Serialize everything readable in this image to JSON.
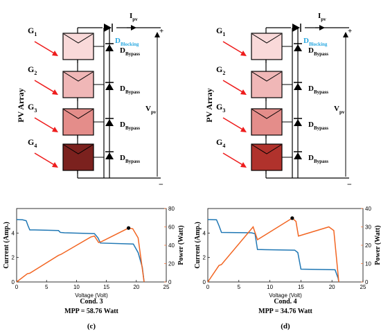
{
  "colors": {
    "arrow": "#ee1c1c",
    "current": "#1f77b4",
    "power": "#f26522",
    "blocking": "#29a8e0",
    "circuit_c": [
      "#f9d9d9",
      "#f0b7b7",
      "#e48d8a",
      "#7b211e"
    ],
    "circuit_d": [
      "#f9d9d9",
      "#f0b7b7",
      "#e48d8a",
      "#b0322c"
    ]
  },
  "diagram": {
    "irradiance": [
      "G",
      "G",
      "G",
      "G"
    ],
    "irradiance_sub": [
      "1",
      "2",
      "3",
      "4"
    ],
    "array_label": "PV Array",
    "current_main": "I",
    "current_sub": "pv",
    "voltage_main": "V",
    "voltage_sub": "pv",
    "plus": "+",
    "minus": "−",
    "blocking_main": "D",
    "blocking_sub": "Blocking",
    "bypass_main": "D",
    "bypass_sub": "Bypass"
  },
  "chart_data": [
    {
      "type": "line",
      "xlabel": "Voltage (Volt)",
      "ylabel_left": "Current (Amp.)",
      "ylabel_right": "Power (Watt)",
      "xlim": [
        0,
        25
      ],
      "ylim_left": [
        0,
        6
      ],
      "ylim_right": [
        0,
        80
      ],
      "xticks": [
        0,
        5,
        10,
        15,
        20,
        25
      ],
      "yticks_left": [
        0,
        2,
        4
      ],
      "yticks_right": [
        0,
        20,
        40,
        60,
        80
      ],
      "series": [
        {
          "axis": "left",
          "x": [
            0,
            1.0,
            1.6,
            1.9,
            2.2,
            3,
            7,
            7.3,
            8,
            13,
            13.6,
            14,
            19.5,
            20.3,
            21,
            21.3
          ],
          "y": [
            5.1,
            5.08,
            5.0,
            4.6,
            4.25,
            4.25,
            4.2,
            4.05,
            4.02,
            3.95,
            3.6,
            3.18,
            3.1,
            2.4,
            1.2,
            0
          ]
        },
        {
          "axis": "left-power",
          "x": [
            0,
            1.8,
            2.2,
            7.0,
            7.4,
            12.4,
            13.0,
            13.7,
            14.2,
            18.7,
            19.4,
            20.3,
            21.3
          ],
          "y": [
            0,
            9,
            9.5,
            29,
            30,
            49,
            50,
            43,
            44,
            58.76,
            58,
            48,
            0
          ]
        }
      ],
      "mpp_point": {
        "x": 18.7,
        "y": 58.76
      },
      "condition": "Cond. 3",
      "mpp": "MPP = 58.76 Watt",
      "panel": "(c)"
    },
    {
      "type": "line",
      "xlabel": "Voltage (Volt)",
      "ylabel_left": "Current (Amp.)",
      "ylabel_right": "Power (Watt)",
      "xlim": [
        0,
        25
      ],
      "ylim_left": [
        0,
        6
      ],
      "ylim_right": [
        0,
        40
      ],
      "xticks": [
        0,
        5,
        10,
        15,
        20,
        25
      ],
      "yticks_left": [
        0,
        2,
        4
      ],
      "yticks_right": [
        0,
        10,
        20,
        30,
        40
      ],
      "series": [
        {
          "axis": "left",
          "x": [
            0,
            1.4,
            1.8,
            2.2,
            7.0,
            7.6,
            8.0,
            14,
            14.5,
            15.0,
            20.5,
            21,
            21.1
          ],
          "y": [
            5.1,
            5.08,
            4.6,
            4.05,
            4.02,
            3.95,
            2.65,
            2.6,
            2.4,
            1.05,
            1.0,
            0.3,
            0
          ]
        },
        {
          "axis": "left-power",
          "x": [
            0,
            1.8,
            2.2,
            7.3,
            8.0,
            13.6,
            14.2,
            14.6,
            19.5,
            20.3,
            21.1
          ],
          "y": [
            0,
            9,
            9.5,
            30,
            23,
            34.76,
            33,
            25,
            30,
            28,
            0
          ]
        }
      ],
      "mpp_point": {
        "x": 13.6,
        "y": 34.76
      },
      "condition": "Cond. 4",
      "mpp": "MPP = 34.76 Watt",
      "panel": "(d)"
    }
  ]
}
